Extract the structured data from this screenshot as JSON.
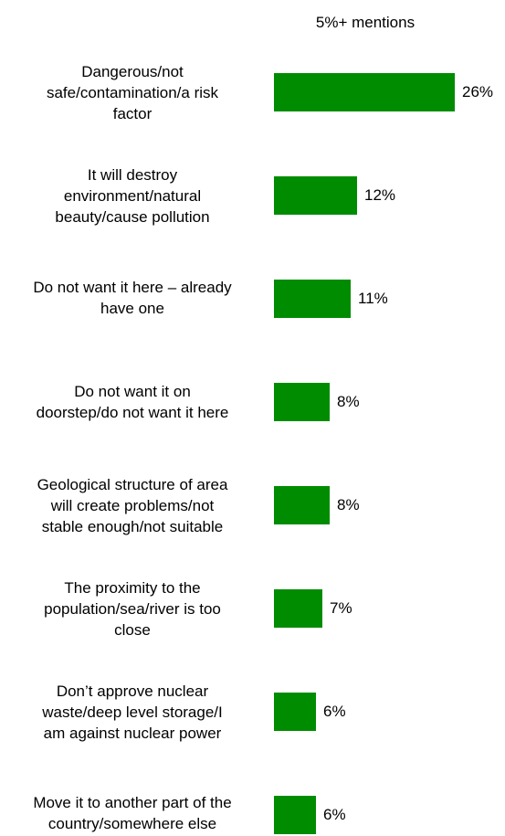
{
  "chart_data": {
    "type": "bar",
    "orientation": "horizontal",
    "subtitle": "5%+ mentions",
    "categories": [
      "Dangerous/not safe/contamination/a risk factor",
      "It will destroy environment/natural beauty/cause pollution",
      "Do not want it here – already have one",
      "Do not want it on doorstep/do not want it here",
      "Geological structure of area will create problems/not stable enough/not suitable",
      "The proximity to the population/sea/river is too close",
      "Don’t approve nuclear waste/deep level storage/I am against nuclear power",
      "Move it to another part of the country/somewhere else"
    ],
    "values": [
      26,
      12,
      11,
      8,
      8,
      7,
      6,
      6
    ],
    "value_labels": [
      "26%",
      "12%",
      "11%",
      "8%",
      "8%",
      "7%",
      "6%",
      "6%"
    ],
    "xlabel": "",
    "ylabel": "",
    "xlim": [
      0,
      26
    ],
    "grid": false,
    "bar_color": "#008C00"
  }
}
